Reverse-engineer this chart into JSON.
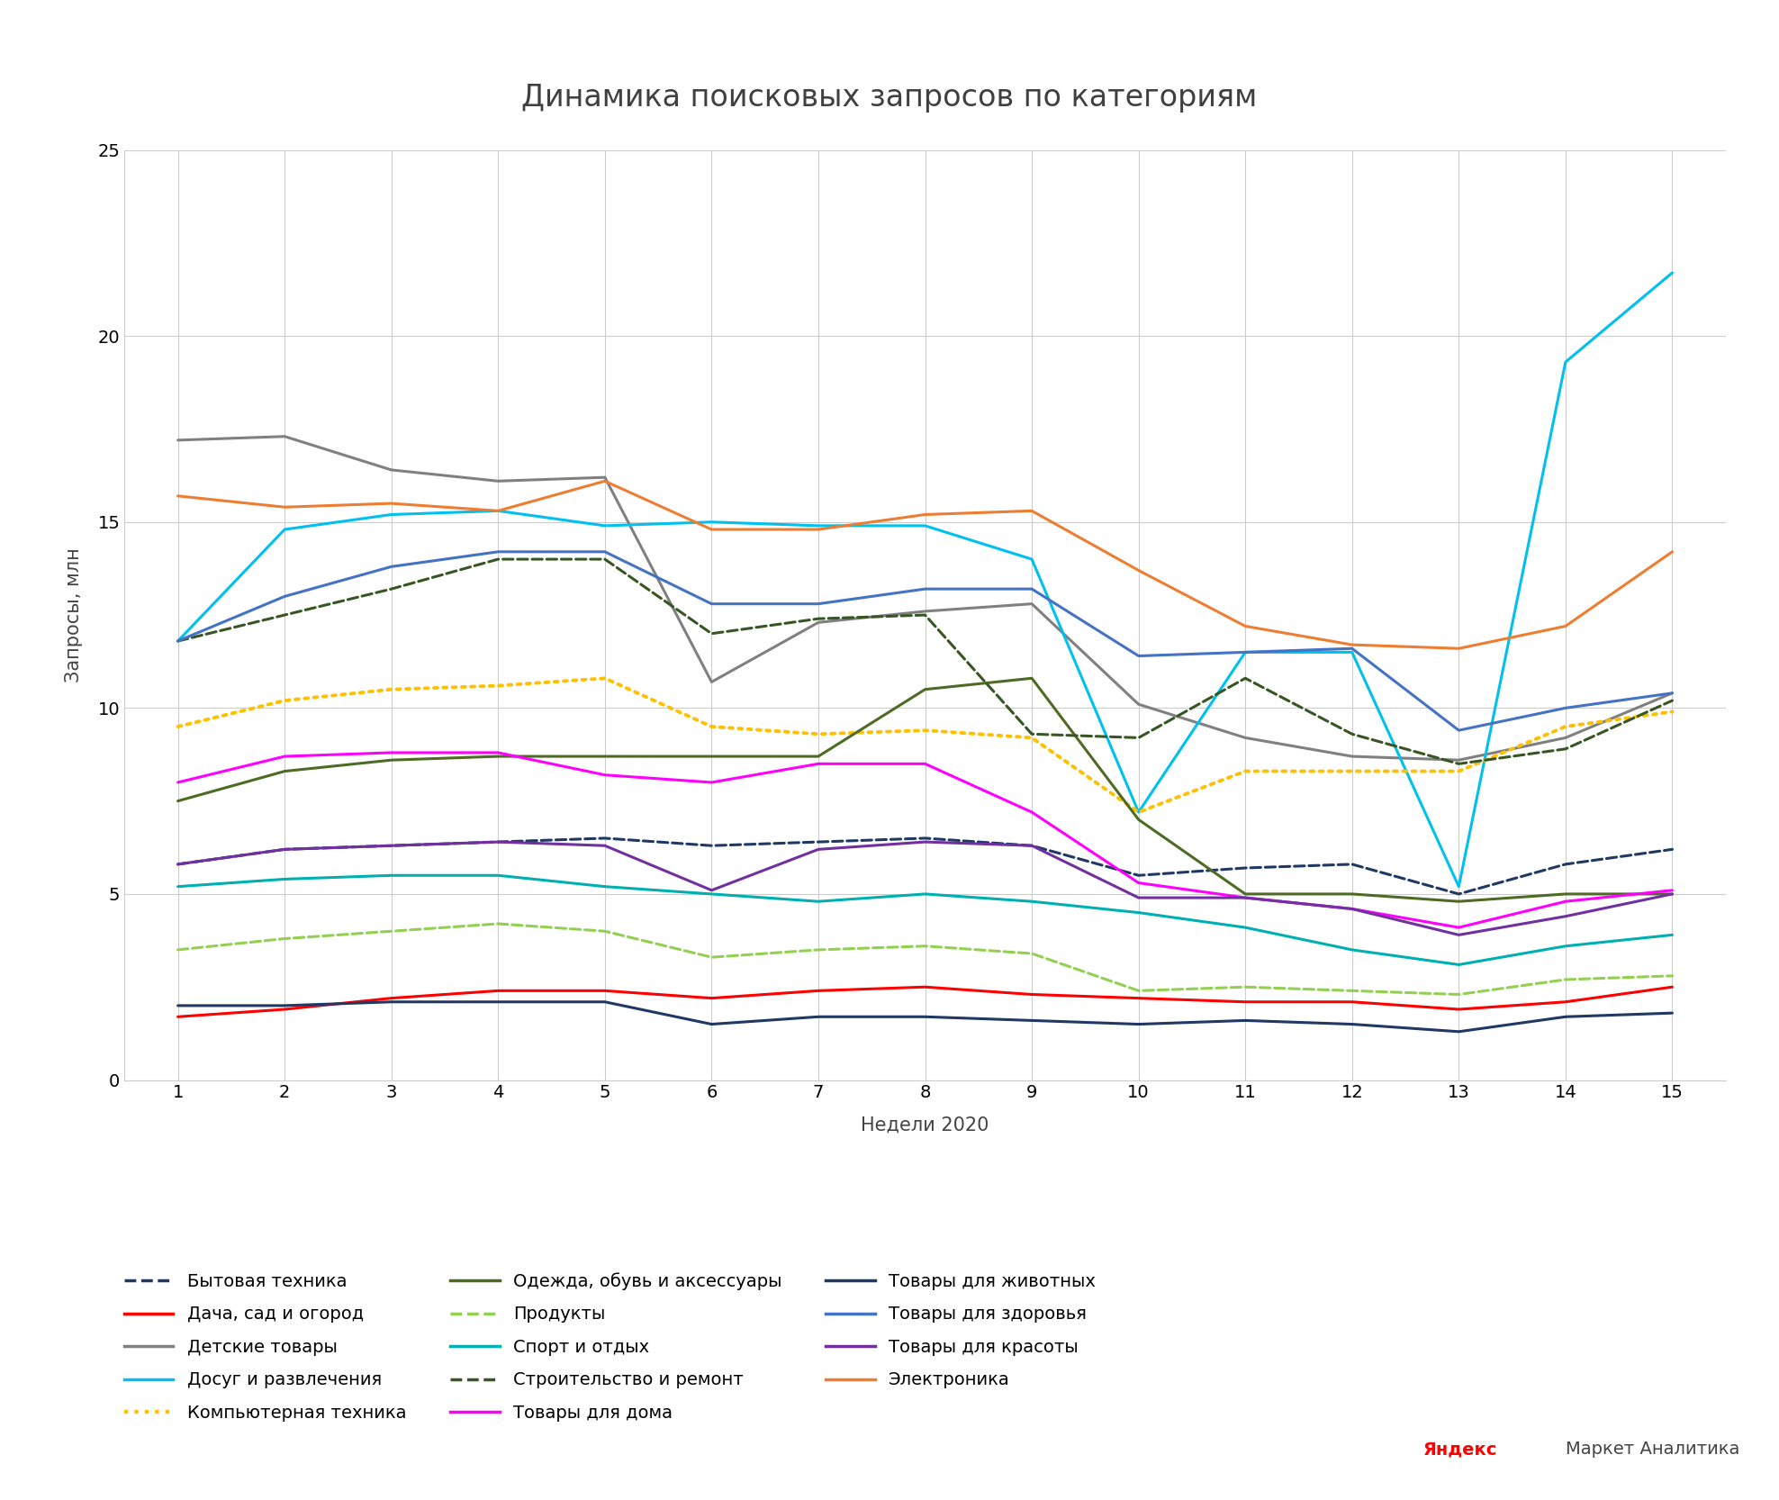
{
  "title": "Динамика поисковых запросов по категориям",
  "xlabel": "Недели 2020",
  "ylabel": "Запросы, млн",
  "weeks": [
    1,
    2,
    3,
    4,
    5,
    6,
    7,
    8,
    9,
    10,
    11,
    12,
    13,
    14,
    15
  ],
  "series": {
    "Бытовая техника": {
      "values": [
        5.8,
        6.2,
        6.3,
        6.4,
        6.5,
        6.3,
        6.4,
        6.5,
        6.3,
        5.5,
        5.7,
        5.8,
        5.0,
        5.8,
        6.2
      ],
      "color": "#1f3864",
      "linestyle": "dashed",
      "linewidth": 2.2
    },
    "Дача, сад и огород": {
      "values": [
        1.7,
        1.9,
        2.2,
        2.4,
        2.4,
        2.2,
        2.4,
        2.5,
        2.3,
        2.2,
        2.1,
        2.1,
        1.9,
        2.1,
        2.5
      ],
      "color": "#ff0000",
      "linestyle": "solid",
      "linewidth": 2.2
    },
    "Детские товары": {
      "values": [
        17.2,
        17.3,
        16.4,
        16.1,
        16.2,
        10.7,
        12.3,
        12.6,
        12.8,
        10.1,
        9.2,
        8.7,
        8.6,
        9.2,
        10.4
      ],
      "color": "#808080",
      "linestyle": "solid",
      "linewidth": 2.2
    },
    "Досуг и развлечения": {
      "values": [
        11.8,
        14.8,
        15.2,
        15.3,
        14.9,
        15.0,
        14.9,
        14.9,
        14.0,
        7.2,
        11.5,
        11.5,
        5.2,
        19.3,
        21.7
      ],
      "color": "#00c0f0",
      "linestyle": "solid",
      "linewidth": 2.2
    },
    "Компьютерная техника": {
      "values": [
        9.5,
        10.2,
        10.5,
        10.6,
        10.8,
        9.5,
        9.3,
        9.4,
        9.2,
        7.2,
        8.3,
        8.3,
        8.3,
        9.5,
        9.9
      ],
      "color": "#ffc000",
      "linestyle": "dotted",
      "linewidth": 2.8
    },
    "Одежда, обувь и аксессуары": {
      "values": [
        7.5,
        8.3,
        8.6,
        8.7,
        8.7,
        8.7,
        8.7,
        10.5,
        10.8,
        7.0,
        5.0,
        5.0,
        4.8,
        5.0,
        5.0
      ],
      "color": "#4e6b24",
      "linestyle": "solid",
      "linewidth": 2.2
    },
    "Продукты": {
      "values": [
        3.5,
        3.8,
        4.0,
        4.2,
        4.0,
        3.3,
        3.5,
        3.6,
        3.4,
        2.4,
        2.5,
        2.4,
        2.3,
        2.7,
        2.8
      ],
      "color": "#92d050",
      "linestyle": "dashed",
      "linewidth": 2.2
    },
    "Спорт и отдых": {
      "values": [
        5.2,
        5.4,
        5.5,
        5.5,
        5.2,
        5.0,
        4.8,
        5.0,
        4.8,
        4.5,
        4.1,
        3.5,
        3.1,
        3.6,
        3.9
      ],
      "color": "#00b0b0",
      "linestyle": "solid",
      "linewidth": 2.2
    },
    "Строительство и ремонт": {
      "values": [
        11.8,
        12.5,
        13.2,
        14.0,
        14.0,
        12.0,
        12.4,
        12.5,
        9.3,
        9.2,
        10.8,
        9.3,
        8.5,
        8.9,
        10.2
      ],
      "color": "#375623",
      "linestyle": "dashed",
      "linewidth": 2.2
    },
    "Товары для дома": {
      "values": [
        8.0,
        8.7,
        8.8,
        8.8,
        8.2,
        8.0,
        8.5,
        8.5,
        7.2,
        5.3,
        4.9,
        4.6,
        4.1,
        4.8,
        5.1
      ],
      "color": "#ff00ff",
      "linestyle": "solid",
      "linewidth": 2.2
    },
    "Товары для животных": {
      "values": [
        2.0,
        2.0,
        2.1,
        2.1,
        2.1,
        1.5,
        1.7,
        1.7,
        1.6,
        1.5,
        1.6,
        1.5,
        1.3,
        1.7,
        1.8
      ],
      "color": "#203864",
      "linestyle": "solid",
      "linewidth": 2.2
    },
    "Товары для здоровья": {
      "values": [
        11.8,
        13.0,
        13.8,
        14.2,
        14.2,
        12.8,
        12.8,
        13.2,
        13.2,
        11.4,
        11.5,
        11.6,
        9.4,
        10.0,
        10.4
      ],
      "color": "#4472c4",
      "linestyle": "solid",
      "linewidth": 2.2
    },
    "Товары для красоты": {
      "values": [
        5.8,
        6.2,
        6.3,
        6.4,
        6.3,
        5.1,
        6.2,
        6.4,
        6.3,
        4.9,
        4.9,
        4.6,
        3.9,
        4.4,
        5.0
      ],
      "color": "#7030a0",
      "linestyle": "solid",
      "linewidth": 2.2
    },
    "Электроника": {
      "values": [
        15.7,
        15.4,
        15.5,
        15.3,
        16.1,
        14.8,
        14.8,
        15.2,
        15.3,
        13.7,
        12.2,
        11.7,
        11.6,
        12.2,
        14.2
      ],
      "color": "#ed7d31",
      "linestyle": "solid",
      "linewidth": 2.2
    }
  },
  "background_color": "#ffffff",
  "grid_color": "#cccccc",
  "ylim": [
    0,
    25
  ],
  "yticks": [
    0,
    5,
    10,
    15,
    20,
    25
  ],
  "xticks": [
    1,
    2,
    3,
    4,
    5,
    6,
    7,
    8,
    9,
    10,
    11,
    12,
    13,
    14,
    15
  ],
  "title_fontsize": 24,
  "axis_label_fontsize": 15,
  "tick_fontsize": 14,
  "legend_fontsize": 14,
  "legend_order": [
    "Бытовая техника",
    "Дача, сад и огород",
    "Детские товары",
    "Досуг и развлечения",
    "Компьютерная техника",
    "Одежда, обувь и аксессуары",
    "Продукты",
    "Спорт и отдых",
    "Строительство и ремонт",
    "Товары для дома",
    "Товары для животных",
    "Товары для здоровья",
    "Товары для красоты",
    "Электроника"
  ]
}
